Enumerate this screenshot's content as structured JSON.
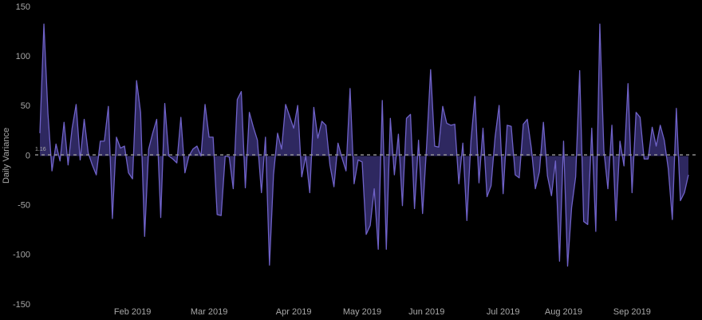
{
  "chart_data": {
    "type": "area",
    "y_label": "Daily Variance",
    "categories": [
      null,
      null,
      null,
      null,
      null,
      null,
      null,
      null,
      null,
      null,
      null,
      null,
      null,
      null,
      null,
      null,
      null,
      null,
      null,
      null,
      null,
      null,
      null,
      "Feb 2019",
      null,
      null,
      null,
      null,
      null,
      null,
      null,
      null,
      null,
      null,
      null,
      null,
      null,
      null,
      null,
      null,
      null,
      null,
      "Mar 2019",
      null,
      null,
      null,
      null,
      null,
      null,
      null,
      null,
      null,
      null,
      null,
      null,
      null,
      null,
      null,
      null,
      null,
      null,
      null,
      null,
      "Apr 2019",
      null,
      null,
      null,
      null,
      null,
      null,
      null,
      null,
      null,
      null,
      null,
      null,
      null,
      null,
      null,
      null,
      "May 2019",
      null,
      null,
      null,
      null,
      null,
      null,
      null,
      null,
      null,
      null,
      null,
      null,
      null,
      null,
      null,
      "Jun 2019",
      null,
      null,
      null,
      null,
      null,
      null,
      null,
      null,
      null,
      null,
      null,
      null,
      null,
      null,
      null,
      null,
      null,
      null,
      "Jul 2019",
      null,
      null,
      null,
      null,
      null,
      null,
      null,
      null,
      null,
      null,
      null,
      null,
      null,
      null,
      "Aug 2019",
      null,
      null,
      null,
      null,
      null,
      null,
      null,
      null,
      null,
      null,
      null,
      null,
      null,
      null,
      null,
      null,
      "Sep 2019",
      null,
      null,
      null,
      null,
      null,
      null,
      null,
      null,
      null,
      null,
      null,
      null,
      null,
      null
    ],
    "series": [
      {
        "color": "#6f62c8",
        "fill": "#2e2860",
        "values": [
          23,
          133,
          43,
          -15,
          12,
          -5,
          34,
          -9,
          28,
          52,
          -4,
          37,
          3,
          -9,
          -19,
          15,
          15,
          50,
          -63,
          19,
          8,
          10,
          -17,
          -23,
          76,
          44,
          -81,
          7,
          23,
          37,
          -62,
          53,
          0,
          -3,
          -7,
          39,
          -17,
          0,
          7,
          10,
          0,
          52,
          19,
          19,
          -59,
          -60,
          0,
          -1,
          -33,
          57,
          65,
          -32,
          44,
          29,
          16,
          -37,
          19,
          -110,
          -19,
          23,
          7,
          52,
          40,
          28,
          51,
          -21,
          0,
          -37,
          49,
          18,
          35,
          31,
          -9,
          -31,
          13,
          -2,
          -15,
          68,
          -28,
          -4,
          -6,
          -79,
          -70,
          -33,
          -94,
          56,
          -94,
          38,
          -19,
          22,
          -50,
          38,
          42,
          -53,
          16,
          -58,
          10,
          87,
          10,
          9,
          50,
          33,
          31,
          32,
          -28,
          13,
          -65,
          15,
          60,
          -27,
          28,
          -41,
          -30,
          19,
          51,
          -38,
          31,
          30,
          -19,
          -22,
          32,
          37,
          8,
          -33,
          -16,
          34,
          -20,
          -40,
          -5,
          -106,
          15,
          -111,
          -52,
          -21,
          86,
          -66,
          -69,
          28,
          -76,
          133,
          6,
          -33,
          31,
          -65,
          15,
          -10,
          73,
          -37,
          44,
          39,
          -3,
          -3,
          29,
          10,
          31,
          16,
          -13,
          -64,
          48,
          -45,
          -37,
          -19
        ]
      }
    ],
    "reference_line": 1.16,
    "ylim": [
      -150,
      150
    ],
    "yticks": [
      -150,
      -100,
      -50,
      0,
      50,
      100,
      150
    ]
  }
}
